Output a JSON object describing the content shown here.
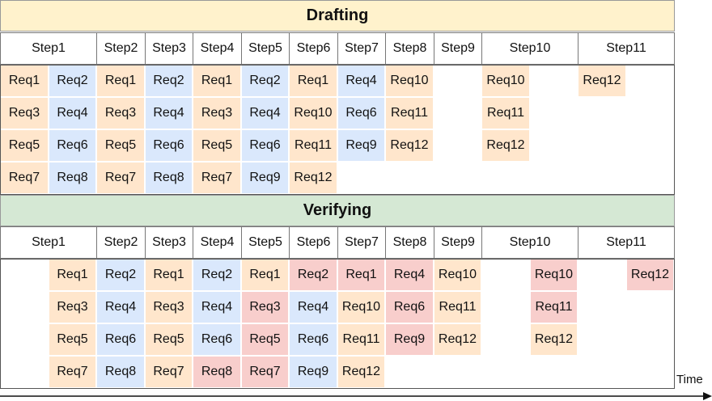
{
  "colors": {
    "drafting_band": "#fff2cc",
    "verifying_band": "#d5e8d4",
    "orange": "#ffe6cc",
    "blue": "#dae8fc",
    "red": "#f8cecc"
  },
  "drafting": {
    "title": "Drafting",
    "steps": [
      {
        "label": "Step1",
        "width": 2
      },
      {
        "label": "Step2",
        "width": 1
      },
      {
        "label": "Step3",
        "width": 1
      },
      {
        "label": "Step4",
        "width": 1
      },
      {
        "label": "Step5",
        "width": 1
      },
      {
        "label": "Step6",
        "width": 1
      },
      {
        "label": "Step7",
        "width": 1
      },
      {
        "label": "Step8",
        "width": 1
      },
      {
        "label": "Step9",
        "width": 1
      },
      {
        "label": "Step10",
        "width": 2
      },
      {
        "label": "Step11",
        "width": 2
      }
    ],
    "columns": [
      [
        {
          "t": "Req1",
          "c": "orange"
        },
        {
          "t": "Req3",
          "c": "orange"
        },
        {
          "t": "Req5",
          "c": "orange"
        },
        {
          "t": "Req7",
          "c": "orange"
        }
      ],
      [
        {
          "t": "Req2",
          "c": "blue"
        },
        {
          "t": "Req4",
          "c": "blue"
        },
        {
          "t": "Req6",
          "c": "blue"
        },
        {
          "t": "Req8",
          "c": "blue"
        }
      ],
      [
        {
          "t": "Req1",
          "c": "orange"
        },
        {
          "t": "Req3",
          "c": "orange"
        },
        {
          "t": "Req5",
          "c": "orange"
        },
        {
          "t": "Req7",
          "c": "orange"
        }
      ],
      [
        {
          "t": "Req2",
          "c": "blue"
        },
        {
          "t": "Req4",
          "c": "blue"
        },
        {
          "t": "Req6",
          "c": "blue"
        },
        {
          "t": "Req8",
          "c": "blue"
        }
      ],
      [
        {
          "t": "Req1",
          "c": "orange"
        },
        {
          "t": "Req3",
          "c": "orange"
        },
        {
          "t": "Req5",
          "c": "orange"
        },
        {
          "t": "Req7",
          "c": "orange"
        }
      ],
      [
        {
          "t": "Req2",
          "c": "blue"
        },
        {
          "t": "Req4",
          "c": "blue"
        },
        {
          "t": "Req6",
          "c": "blue"
        },
        {
          "t": "Req9",
          "c": "blue"
        }
      ],
      [
        {
          "t": "Req1",
          "c": "orange"
        },
        {
          "t": "Req10",
          "c": "orange"
        },
        {
          "t": "Req11",
          "c": "orange"
        },
        {
          "t": "Req12",
          "c": "orange"
        }
      ],
      [
        {
          "t": "Req4",
          "c": "blue"
        },
        {
          "t": "Req6",
          "c": "blue"
        },
        {
          "t": "Req9",
          "c": "blue"
        }
      ],
      [
        {
          "t": "Req10",
          "c": "orange"
        },
        {
          "t": "Req11",
          "c": "orange"
        },
        {
          "t": "Req12",
          "c": "orange"
        }
      ],
      [],
      [
        {
          "t": "Req10",
          "c": "orange"
        },
        {
          "t": "Req11",
          "c": "orange"
        },
        {
          "t": "Req12",
          "c": "orange"
        }
      ],
      [],
      [
        {
          "t": "Req12",
          "c": "orange"
        }
      ],
      []
    ]
  },
  "verifying": {
    "title": "Verifying",
    "steps": [
      {
        "label": "Step1",
        "width": 2
      },
      {
        "label": "Step2",
        "width": 1
      },
      {
        "label": "Step3",
        "width": 1
      },
      {
        "label": "Step4",
        "width": 1
      },
      {
        "label": "Step5",
        "width": 1
      },
      {
        "label": "Step6",
        "width": 1
      },
      {
        "label": "Step7",
        "width": 1
      },
      {
        "label": "Step8",
        "width": 1
      },
      {
        "label": "Step9",
        "width": 1
      },
      {
        "label": "Step10",
        "width": 2
      },
      {
        "label": "Step11",
        "width": 2
      }
    ],
    "columns": [
      [],
      [
        {
          "t": "Req1",
          "c": "orange"
        },
        {
          "t": "Req3",
          "c": "orange"
        },
        {
          "t": "Req5",
          "c": "orange"
        },
        {
          "t": "Req7",
          "c": "orange"
        }
      ],
      [
        {
          "t": "Req2",
          "c": "blue"
        },
        {
          "t": "Req4",
          "c": "blue"
        },
        {
          "t": "Req6",
          "c": "blue"
        },
        {
          "t": "Req8",
          "c": "blue"
        }
      ],
      [
        {
          "t": "Req1",
          "c": "orange"
        },
        {
          "t": "Req3",
          "c": "orange"
        },
        {
          "t": "Req5",
          "c": "orange"
        },
        {
          "t": "Req7",
          "c": "orange"
        }
      ],
      [
        {
          "t": "Req2",
          "c": "blue"
        },
        {
          "t": "Req4",
          "c": "blue"
        },
        {
          "t": "Req6",
          "c": "blue"
        },
        {
          "t": "Req8",
          "c": "red"
        }
      ],
      [
        {
          "t": "Req1",
          "c": "orange"
        },
        {
          "t": "Req3",
          "c": "red"
        },
        {
          "t": "Req5",
          "c": "red"
        },
        {
          "t": "Req7",
          "c": "red"
        }
      ],
      [
        {
          "t": "Req2",
          "c": "red"
        },
        {
          "t": "Req4",
          "c": "blue"
        },
        {
          "t": "Req6",
          "c": "blue"
        },
        {
          "t": "Req9",
          "c": "blue"
        }
      ],
      [
        {
          "t": "Req1",
          "c": "red"
        },
        {
          "t": "Req10",
          "c": "orange"
        },
        {
          "t": "Req11",
          "c": "orange"
        },
        {
          "t": "Req12",
          "c": "orange"
        }
      ],
      [
        {
          "t": "Req4",
          "c": "red"
        },
        {
          "t": "Req6",
          "c": "red"
        },
        {
          "t": "Req9",
          "c": "red"
        }
      ],
      [
        {
          "t": "Req10",
          "c": "orange"
        },
        {
          "t": "Req11",
          "c": "orange"
        },
        {
          "t": "Req12",
          "c": "orange"
        }
      ],
      [],
      [
        {
          "t": "Req10",
          "c": "red"
        },
        {
          "t": "Req11",
          "c": "red"
        },
        {
          "t": "Req12",
          "c": "orange"
        }
      ],
      [],
      [
        {
          "t": "Req12",
          "c": "red"
        }
      ]
    ]
  },
  "axis": {
    "label": "Time"
  }
}
